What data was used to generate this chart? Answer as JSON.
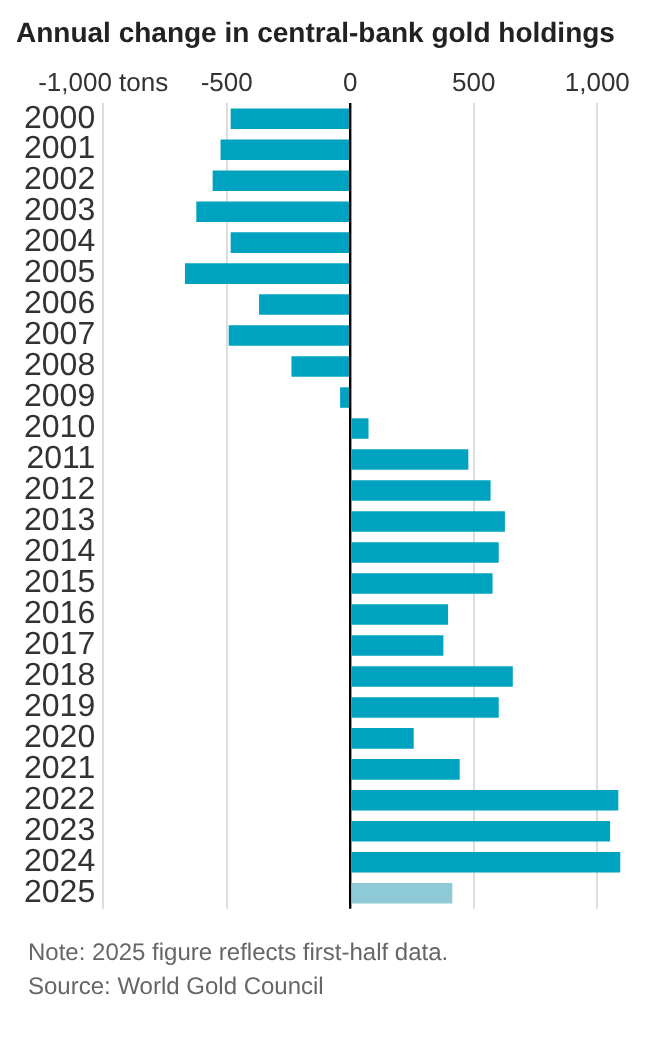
{
  "chart_data": {
    "type": "bar",
    "orientation": "horizontal",
    "title": "Annual change in central-bank gold holdings",
    "categories": [
      "2000",
      "2001",
      "2002",
      "2003",
      "2004",
      "2005",
      "2006",
      "2007",
      "2008",
      "2009",
      "2010",
      "2011",
      "2012",
      "2013",
      "2014",
      "2015",
      "2016",
      "2017",
      "2018",
      "2019",
      "2020",
      "2021",
      "2022",
      "2023",
      "2024",
      "2025"
    ],
    "values": [
      -484,
      -525,
      -557,
      -623,
      -484,
      -669,
      -369,
      -492,
      -238,
      -41,
      74,
      478,
      568,
      626,
      601,
      576,
      396,
      377,
      658,
      601,
      257,
      443,
      1085,
      1052,
      1093,
      413
    ],
    "colors": [
      "#00a3bf",
      "#00a3bf",
      "#00a3bf",
      "#00a3bf",
      "#00a3bf",
      "#00a3bf",
      "#00a3bf",
      "#00a3bf",
      "#00a3bf",
      "#00a3bf",
      "#00a3bf",
      "#00a3bf",
      "#00a3bf",
      "#00a3bf",
      "#00a3bf",
      "#00a3bf",
      "#00a3bf",
      "#00a3bf",
      "#00a3bf",
      "#00a3bf",
      "#00a3bf",
      "#00a3bf",
      "#00a3bf",
      "#00a3bf",
      "#00a3bf",
      "#8ecad6"
    ],
    "xlim": [
      -1000,
      1100
    ],
    "xticks": [
      {
        "value": -1000,
        "label": "-1,000 tons"
      },
      {
        "value": -500,
        "label": "-500"
      },
      0,
      500,
      {
        "value": 1000,
        "label": "1,000"
      }
    ],
    "grid": "x",
    "annotations": [
      "Note: 2025 figure reflects first-half data.",
      "Source: World Gold Council"
    ]
  }
}
